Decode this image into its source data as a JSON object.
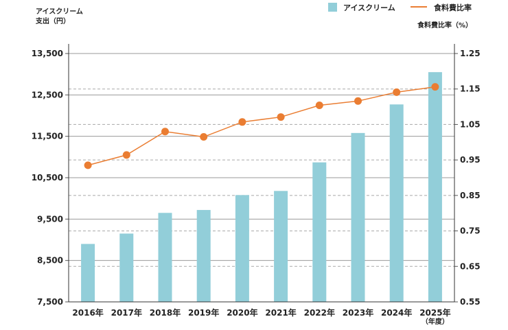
{
  "chart_data": {
    "type": "bar+line",
    "title": "",
    "categories": [
      "2016年",
      "2017年",
      "2018年",
      "2019年",
      "2020年",
      "2021年",
      "2022年",
      "2023年",
      "2024年",
      "2025年"
    ],
    "x_unit": "（年度）",
    "left_axis": {
      "label_line1": "アイスクリーム",
      "label_line2": "支出（円）",
      "ylim": [
        7500,
        13500
      ],
      "ticks": [
        "7,500",
        "8,500",
        "9,500",
        "10,500",
        "11,500",
        "12,500",
        "13,500"
      ],
      "tick_values": [
        7500,
        8500,
        9500,
        10500,
        11500,
        12500,
        13500
      ]
    },
    "right_axis": {
      "label": "食料費比率（%）",
      "ylim": [
        0.55,
        1.25
      ],
      "ticks": [
        "0.55",
        "0.65",
        "0.75",
        "0.85",
        "0.95",
        "1.05",
        "1.15",
        "1.25"
      ],
      "tick_values": [
        0.55,
        0.65,
        0.75,
        0.85,
        0.95,
        1.05,
        1.15,
        1.25
      ]
    },
    "series": [
      {
        "name": "アイスクリーム",
        "type": "bar",
        "axis": "left",
        "color": "#92ced9",
        "values": [
          8900,
          9150,
          9650,
          9720,
          10080,
          10180,
          10870,
          11580,
          12270,
          13050
        ]
      },
      {
        "name": "食料費比率",
        "type": "line",
        "axis": "right",
        "color": "#ea7d32",
        "values": [
          0.935,
          0.964,
          1.03,
          1.015,
          1.057,
          1.071,
          1.104,
          1.116,
          1.141,
          1.156
        ]
      }
    ],
    "legend_position": "top-right",
    "grid": true
  }
}
